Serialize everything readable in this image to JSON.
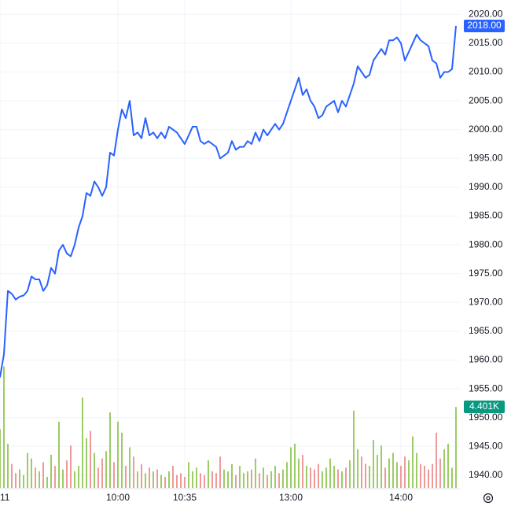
{
  "chart_data": {
    "type": "line",
    "xlim": [
      0,
      117
    ],
    "xticks": [
      {
        "value": 0,
        "label": "11"
      },
      {
        "value": 30,
        "label": "10:00"
      },
      {
        "value": 47,
        "label": "10:35"
      },
      {
        "value": 74,
        "label": "13:00"
      },
      {
        "value": 102,
        "label": "14:00"
      }
    ],
    "ylim": [
      1937.8,
      2022.5
    ],
    "yticks": [
      {
        "value": 1940,
        "label": "1940.00"
      },
      {
        "value": 1945,
        "label": "1945.00"
      },
      {
        "value": 1950,
        "label": "1950.00"
      },
      {
        "value": 1955,
        "label": "1955.00"
      },
      {
        "value": 1960,
        "label": "1960.00"
      },
      {
        "value": 1965,
        "label": "1965.00"
      },
      {
        "value": 1970,
        "label": "1970.00"
      },
      {
        "value": 1975,
        "label": "1975.00"
      },
      {
        "value": 1980,
        "label": "1980.00"
      },
      {
        "value": 1985,
        "label": "1985.00"
      },
      {
        "value": 1990,
        "label": "1990.00"
      },
      {
        "value": 1995,
        "label": "1995.00"
      },
      {
        "value": 2000,
        "label": "2000.00"
      },
      {
        "value": 2005,
        "label": "2005.00"
      },
      {
        "value": 2010,
        "label": "2010.00"
      },
      {
        "value": 2015,
        "label": "2015.00"
      },
      {
        "value": 2020,
        "label": "2020.00"
      }
    ],
    "y2lim": [
      0,
      26.5
    ],
    "grid": true,
    "up_color": "#9ccc65",
    "down_color": "#ef9a9a",
    "series": [
      {
        "color": "#2962ff",
        "values": [
          1957,
          1961,
          1972,
          1971.5,
          1970.5,
          1971,
          1971.2,
          1972,
          1974.5,
          1974,
          1974,
          1972,
          1973,
          1976,
          1975,
          1979,
          1980,
          1978.5,
          1978,
          1980,
          1983,
          1985,
          1989,
          1988.5,
          1991,
          1990,
          1988.5,
          1990,
          1996,
          1995.5,
          2000,
          2003.5,
          2002,
          2005,
          1999,
          1999.5,
          1998.5,
          2002,
          1999,
          1999.5,
          1998.5,
          1999.5,
          1998.5,
          2000.5,
          2000,
          1999.5,
          1998.5,
          1997.5,
          1999,
          2000.5,
          2000.5,
          1998,
          1997.5,
          1998,
          1997.5,
          1997,
          1995,
          1995.5,
          1996,
          1998,
          1996.5,
          1997,
          1997,
          1998,
          1997.5,
          1999.5,
          1998,
          2000,
          1999,
          2000,
          2001,
          2000,
          2001,
          2003,
          2005,
          2007,
          2009,
          2006,
          2007,
          2005,
          2004,
          2002,
          2002.5,
          2004,
          2004.5,
          2005,
          2003,
          2005,
          2004,
          2006,
          2008,
          2011,
          2010,
          2009,
          2009.5,
          2012,
          2013,
          2014,
          2013,
          2015.5,
          2015.5,
          2016,
          2015,
          2012,
          2013.5,
          2015,
          2016.5,
          2015.5,
          2015,
          2014.5,
          2012,
          2011.5,
          2009,
          2010,
          2010,
          2010.5,
          2018
        ],
        "value_labels": [
          null,
          null,
          null,
          null,
          null,
          null,
          null,
          null,
          null,
          null,
          null,
          null,
          null,
          null,
          null,
          null,
          null,
          null,
          null,
          null,
          null,
          null,
          null,
          null,
          null,
          null,
          null,
          null,
          null,
          null,
          null,
          null,
          null,
          null,
          null,
          null,
          null,
          null,
          null,
          null,
          null,
          null,
          null,
          null,
          null,
          null,
          null,
          null,
          null,
          null,
          null,
          null,
          null,
          null,
          null,
          null,
          null,
          null,
          null,
          null,
          null,
          null,
          null,
          null,
          null,
          null,
          null,
          null,
          null,
          null,
          null,
          null,
          null,
          null,
          null,
          null,
          null,
          null,
          null,
          null,
          null,
          null,
          null,
          null,
          null,
          null,
          null,
          null,
          null,
          null,
          null,
          null,
          null,
          null,
          null,
          null,
          null,
          null,
          null,
          null,
          null,
          null,
          null,
          null,
          null,
          null,
          null,
          null,
          null,
          null,
          null,
          null,
          null,
          null,
          null,
          null,
          "2018.00"
        ]
      },
      {
        "type": "bar",
        "axis": "y2",
        "color": "#089981",
        "values": [
          3.2,
          6.6,
          2.4,
          1.3,
          0.8,
          1.0,
          0.7,
          1.9,
          1.6,
          1.1,
          0.9,
          1.4,
          0.6,
          1.8,
          1.2,
          3.6,
          1.0,
          1.5,
          2.3,
          0.9,
          1.2,
          4.9,
          2.7,
          3.1,
          1.9,
          1.1,
          1.6,
          2.0,
          4.1,
          1.4,
          3.6,
          3.0,
          1.2,
          2.2,
          1.7,
          0.9,
          1.3,
          0.8,
          1.1,
          0.9,
          1.0,
          0.7,
          0.6,
          0.9,
          1.2,
          0.7,
          0.8,
          0.6,
          1.4,
          0.9,
          1.1,
          0.8,
          0.7,
          1.5,
          0.9,
          0.8,
          1.7,
          1.0,
          0.9,
          1.3,
          0.7,
          1.2,
          0.8,
          0.9,
          1.0,
          1.6,
          0.8,
          1.1,
          0.7,
          0.9,
          1.2,
          0.8,
          1.0,
          1.4,
          2.2,
          2.4,
          1.6,
          1.8,
          1.2,
          1.1,
          1.0,
          1.3,
          0.9,
          1.1,
          1.6,
          1.2,
          1.0,
          0.9,
          1.1,
          1.5,
          4.2,
          2.1,
          1.7,
          1.3,
          1.2,
          2.6,
          1.8,
          2.3,
          1.1,
          1.6,
          1.9,
          1.4,
          1.2,
          1.7,
          1.5,
          2.8,
          1.9,
          1.3,
          1.2,
          1.0,
          1.3,
          3.0,
          1.6,
          2.1,
          2.4,
          1.1,
          4.401
        ],
        "value_labels": [
          null,
          null,
          null,
          null,
          null,
          null,
          null,
          null,
          null,
          null,
          null,
          null,
          null,
          null,
          null,
          null,
          null,
          null,
          null,
          null,
          null,
          null,
          null,
          null,
          null,
          null,
          null,
          null,
          null,
          null,
          null,
          null,
          null,
          null,
          null,
          null,
          null,
          null,
          null,
          null,
          null,
          null,
          null,
          null,
          null,
          null,
          null,
          null,
          null,
          null,
          null,
          null,
          null,
          null,
          null,
          null,
          null,
          null,
          null,
          null,
          null,
          null,
          null,
          null,
          null,
          null,
          null,
          null,
          null,
          null,
          null,
          null,
          null,
          null,
          null,
          null,
          null,
          null,
          null,
          null,
          null,
          null,
          null,
          null,
          null,
          null,
          null,
          null,
          null,
          null,
          null,
          null,
          null,
          null,
          null,
          null,
          null,
          null,
          null,
          null,
          null,
          null,
          null,
          null,
          null,
          null,
          null,
          null,
          null,
          null,
          null,
          null,
          null,
          null,
          null,
          null,
          "4.401K"
        ]
      }
    ]
  }
}
